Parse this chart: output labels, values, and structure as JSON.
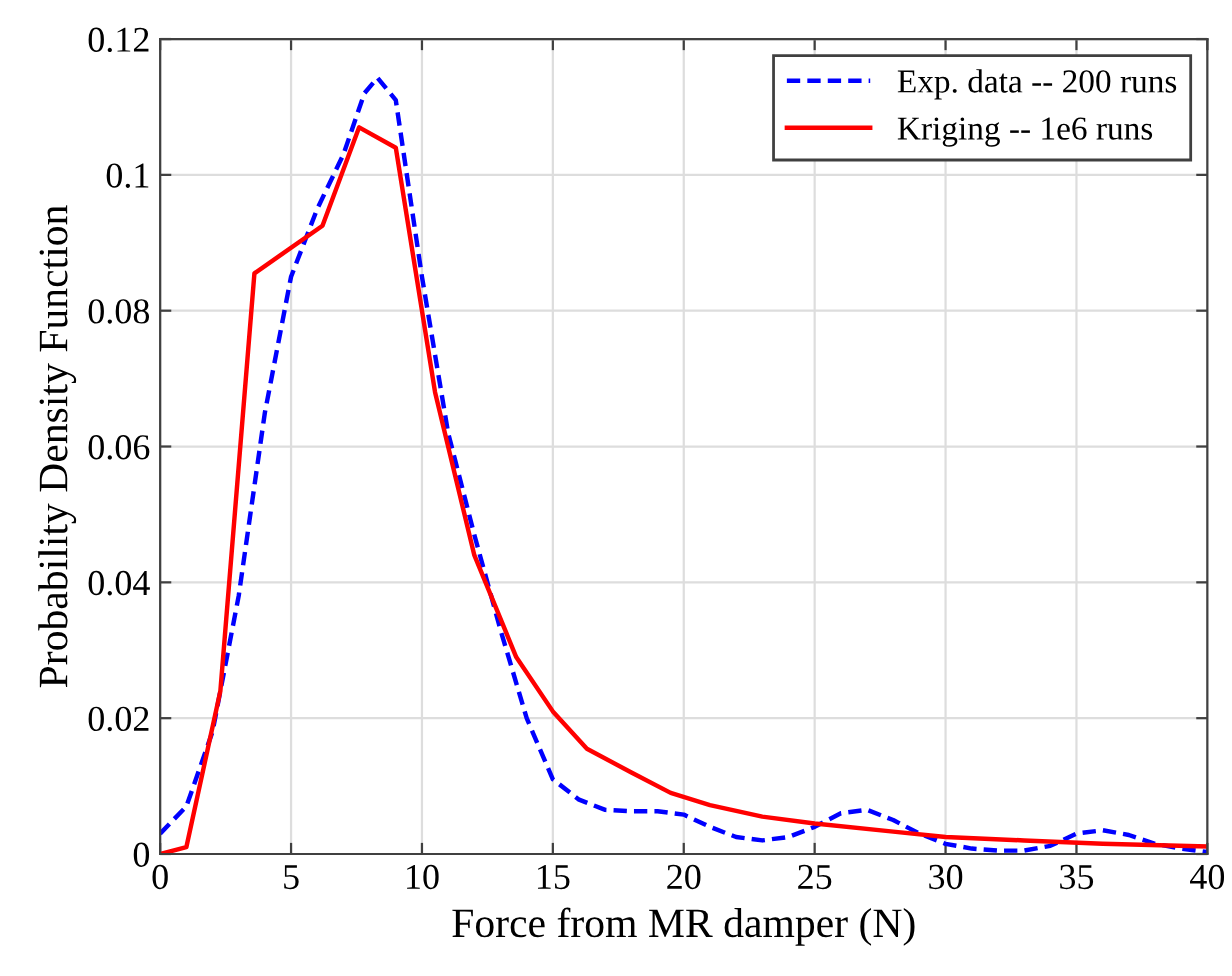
{
  "chart_data": {
    "type": "line",
    "xlabel": "Force from MR damper (N)",
    "ylabel": "Probability Density Function",
    "xlim": [
      0,
      40
    ],
    "ylim": [
      0,
      0.12
    ],
    "xticks": [
      0,
      5,
      10,
      15,
      20,
      25,
      30,
      35,
      40
    ],
    "yticks": [
      0,
      0.02,
      0.04,
      0.06,
      0.08,
      0.1,
      0.12
    ],
    "grid": true,
    "legend": "top right",
    "series": [
      {
        "name": "Exp. data -- 200 runs",
        "color": "#0000ff",
        "line_style": "dashed",
        "x": [
          0,
          1,
          2,
          3,
          4,
          5,
          6,
          7,
          7.8,
          8.3,
          9,
          10,
          11,
          12,
          13,
          14,
          15,
          16,
          17,
          18,
          19,
          20,
          21,
          22,
          23,
          24,
          25,
          26,
          27,
          28,
          29,
          30,
          31,
          32,
          33,
          34,
          35,
          36,
          37,
          38,
          39,
          40
        ],
        "values": [
          0.003,
          0.007,
          0.018,
          0.038,
          0.065,
          0.085,
          0.095,
          0.103,
          0.112,
          0.1143,
          0.111,
          0.085,
          0.062,
          0.047,
          0.033,
          0.02,
          0.011,
          0.008,
          0.0065,
          0.0063,
          0.0063,
          0.0058,
          0.004,
          0.0025,
          0.002,
          0.0025,
          0.004,
          0.006,
          0.0065,
          0.005,
          0.003,
          0.0015,
          0.0008,
          0.0005,
          0.0005,
          0.0012,
          0.003,
          0.0035,
          0.0028,
          0.0015,
          0.0008,
          0.0003
        ]
      },
      {
        "name": "Kriging -- 1e6 runs",
        "color": "#ff0000",
        "line_style": "solid",
        "x": [
          0,
          1,
          2.3,
          3.6,
          6.2,
          7.6,
          9,
          10.5,
          12,
          13.6,
          15,
          16.3,
          18,
          19.5,
          21,
          23,
          25,
          28,
          30,
          33,
          36,
          40
        ],
        "values": [
          0,
          0.001,
          0.024,
          0.0855,
          0.0925,
          0.107,
          0.104,
          0.068,
          0.044,
          0.029,
          0.021,
          0.0155,
          0.012,
          0.009,
          0.0072,
          0.0055,
          0.0045,
          0.0033,
          0.0025,
          0.002,
          0.0015,
          0.0011
        ]
      }
    ]
  }
}
